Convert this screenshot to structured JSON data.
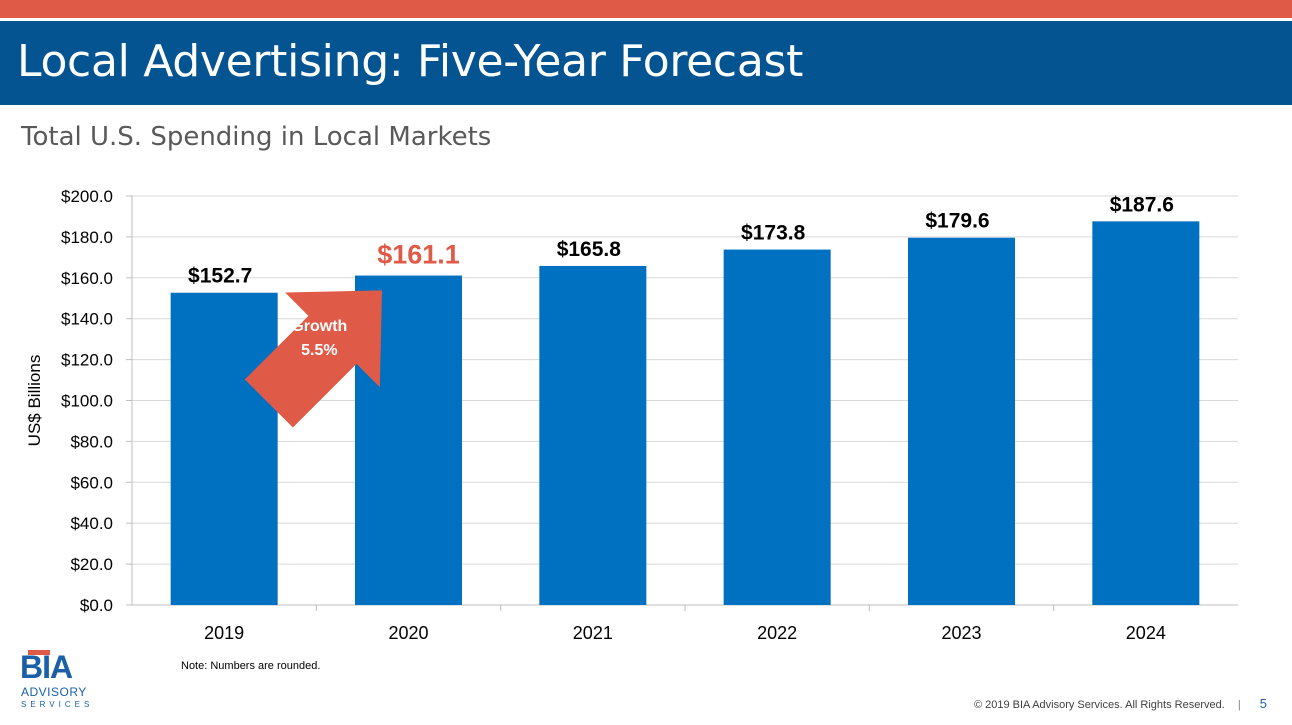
{
  "header": {
    "title": "Local Advertising: Five-Year Forecast",
    "subtitle": "Total U.S. Spending in Local Markets"
  },
  "chart_data": {
    "type": "bar",
    "categories": [
      "2019",
      "2020",
      "2021",
      "2022",
      "2023",
      "2024"
    ],
    "values": [
      152.7,
      161.1,
      165.8,
      173.8,
      179.6,
      187.6
    ],
    "data_labels": [
      "$152.7",
      "$161.1",
      "$165.8",
      "$173.8",
      "$179.6",
      "$187.6"
    ],
    "highlighted_index": 1,
    "ylabel": "US$ Billions",
    "ylim": [
      0,
      200
    ],
    "yticks": [
      0,
      20,
      40,
      60,
      80,
      100,
      120,
      140,
      160,
      180,
      200
    ],
    "ytick_labels": [
      "$0.0",
      "$20.0",
      "$40.0",
      "$60.0",
      "$80.0",
      "$100.0",
      "$120.0",
      "$140.0",
      "$160.0",
      "$180.0",
      "$200.0"
    ],
    "grid": true,
    "legend": "none",
    "annotation": {
      "line1": "Growth",
      "line2": "5.5%"
    },
    "colors": {
      "bar": "#0070c0",
      "highlight": "#e05a48",
      "label": "#000000",
      "grid": "#d9d9d9"
    }
  },
  "note": "Note: Numbers are rounded.",
  "logo": {
    "line1": "BIA",
    "line2": "ADVISORY",
    "line3": "SERVICES"
  },
  "footer": {
    "copyright": "© 2019 BIA Advisory Services. All Rights Reserved.",
    "separator": "|",
    "page_number": "5"
  },
  "colors": {
    "title_bar": "#045492",
    "top_stripe": "#e05a48",
    "brand_blue": "#1a5fa8"
  }
}
